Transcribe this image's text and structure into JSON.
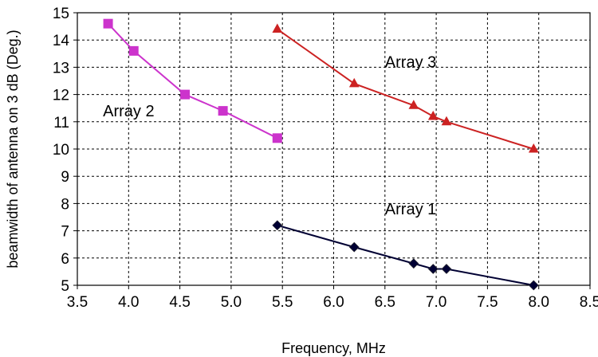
{
  "chart_data": {
    "type": "line",
    "xlabel": "Frequency, MHz",
    "ylabel": "beamwidth of antenna on 3 dB (Deg.)",
    "xlim": [
      3.5,
      8.5
    ],
    "ylim": [
      5,
      15
    ],
    "xticks": [
      "3.5",
      "4.0",
      "4.5",
      "5.0",
      "5.5",
      "6.0",
      "6.5",
      "7.0",
      "7.5",
      "8.0",
      "8.5"
    ],
    "yticks": [
      "5",
      "6",
      "7",
      "8",
      "9",
      "10",
      "11",
      "12",
      "13",
      "14",
      "15"
    ],
    "grid": true,
    "series": [
      {
        "name": "Array 1",
        "color": "#000033",
        "marker": "diamond",
        "x": [
          5.45,
          6.2,
          6.78,
          6.97,
          7.1,
          7.95
        ],
        "y": [
          7.2,
          6.4,
          5.8,
          5.6,
          5.6,
          5.0
        ]
      },
      {
        "name": "Array 2",
        "color": "#CC33CC",
        "marker": "square",
        "x": [
          3.8,
          4.05,
          4.55,
          4.92,
          5.45
        ],
        "y": [
          14.6,
          13.6,
          12.0,
          11.4,
          10.4
        ]
      },
      {
        "name": "Array 3",
        "color": "#CC2222",
        "marker": "triangle",
        "x": [
          5.45,
          6.2,
          6.78,
          6.97,
          7.1,
          7.95
        ],
        "y": [
          14.4,
          12.4,
          11.6,
          11.2,
          11.0,
          10.0
        ]
      }
    ]
  }
}
